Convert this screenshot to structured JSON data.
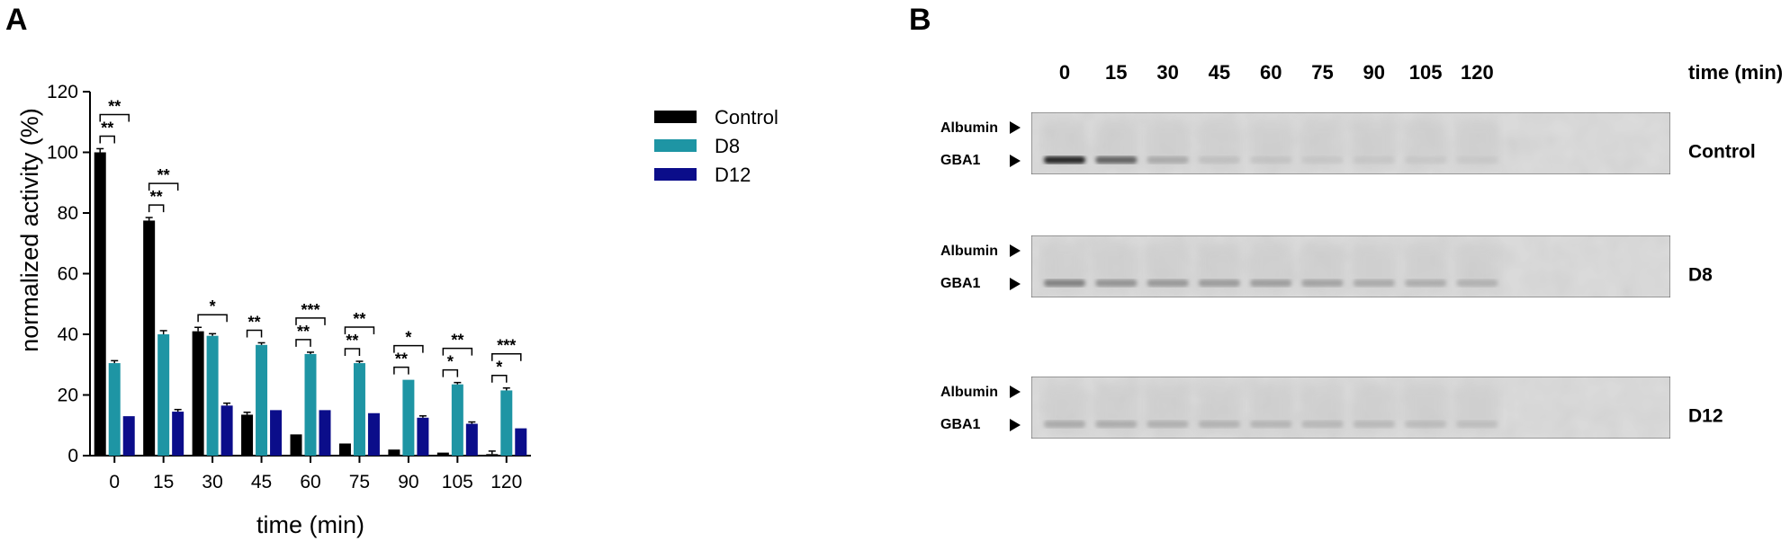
{
  "panel_a_label": "A",
  "panel_b_label": "B",
  "chart_data": {
    "type": "bar",
    "categories": [
      "0",
      "15",
      "30",
      "45",
      "60",
      "75",
      "90",
      "105",
      "120"
    ],
    "xlabel": "time (min)",
    "ylabel": "normalized activity (%)",
    "ylim": [
      0,
      120
    ],
    "yticks": [
      0,
      20,
      40,
      60,
      80,
      100,
      120
    ],
    "legend_position": "top-right",
    "grid": false,
    "series": [
      {
        "name": "Control",
        "color": "#000000",
        "values": [
          100,
          77.5,
          41,
          13.5,
          7,
          4,
          2,
          1,
          0.5
        ],
        "errors": [
          1.2,
          1,
          1.3,
          0.8,
          0,
          0,
          0,
          0,
          1
        ]
      },
      {
        "name": "D8",
        "color": "#1E95A4",
        "values": [
          30.5,
          40,
          39.5,
          36.5,
          33.5,
          30.5,
          25,
          23.5,
          21.5
        ],
        "errors": [
          0.8,
          1.2,
          0.7,
          0.7,
          0.6,
          0.6,
          0,
          0.6,
          0.8
        ]
      },
      {
        "name": "D12",
        "color": "#0B0D8A",
        "values": [
          13,
          14.5,
          16.5,
          15,
          15,
          14,
          12.5,
          10.5,
          9
        ],
        "errors": [
          0,
          0.7,
          0.8,
          0,
          0,
          0,
          0.6,
          0.6,
          0
        ]
      }
    ],
    "significance": [
      {
        "category": 0,
        "pairs": [
          {
            "from": "Control",
            "to": "D8",
            "label": "**"
          },
          {
            "from": "Control",
            "to": "D12",
            "label": "**"
          }
        ]
      },
      {
        "category": 1,
        "pairs": [
          {
            "from": "Control",
            "to": "D8",
            "label": "**"
          },
          {
            "from": "Control",
            "to": "D12",
            "label": "**"
          }
        ]
      },
      {
        "category": 2,
        "pairs": [
          {
            "from": "Control",
            "to": "D12",
            "label": "*"
          }
        ]
      },
      {
        "category": 3,
        "pairs": [
          {
            "from": "Control",
            "to": "D8",
            "label": "**"
          }
        ]
      },
      {
        "category": 4,
        "pairs": [
          {
            "from": "Control",
            "to": "D8",
            "label": "**"
          },
          {
            "from": "Control",
            "to": "D12",
            "label": "***"
          }
        ]
      },
      {
        "category": 5,
        "pairs": [
          {
            "from": "Control",
            "to": "D8",
            "label": "**"
          },
          {
            "from": "Control",
            "to": "D12",
            "label": "**"
          }
        ]
      },
      {
        "category": 6,
        "pairs": [
          {
            "from": "Control",
            "to": "D8",
            "label": "**"
          },
          {
            "from": "Control",
            "to": "D12",
            "label": "*"
          }
        ]
      },
      {
        "category": 7,
        "pairs": [
          {
            "from": "Control",
            "to": "D8",
            "label": "*"
          },
          {
            "from": "Control",
            "to": "D12",
            "label": "**"
          }
        ]
      },
      {
        "category": 8,
        "pairs": [
          {
            "from": "Control",
            "to": "D8",
            "label": "*"
          },
          {
            "from": "Control",
            "to": "D12",
            "label": "***"
          }
        ]
      }
    ]
  },
  "blot": {
    "time_labels": [
      "0",
      "15",
      "30",
      "45",
      "60",
      "75",
      "90",
      "105",
      "120"
    ],
    "time_unit": "time (min)",
    "band_labels": [
      "Albumin",
      "GBA1"
    ],
    "rows": [
      {
        "condition": "Control",
        "gba1_intensity": [
          0.95,
          0.7,
          0.3,
          0.12,
          0.08,
          0.05,
          0.04,
          0.03,
          0.02
        ]
      },
      {
        "condition": "D8",
        "gba1_intensity": [
          0.55,
          0.45,
          0.42,
          0.4,
          0.38,
          0.35,
          0.3,
          0.28,
          0.25
        ]
      },
      {
        "condition": "D12",
        "gba1_intensity": [
          0.3,
          0.28,
          0.26,
          0.24,
          0.22,
          0.2,
          0.18,
          0.16,
          0.14
        ]
      }
    ]
  }
}
